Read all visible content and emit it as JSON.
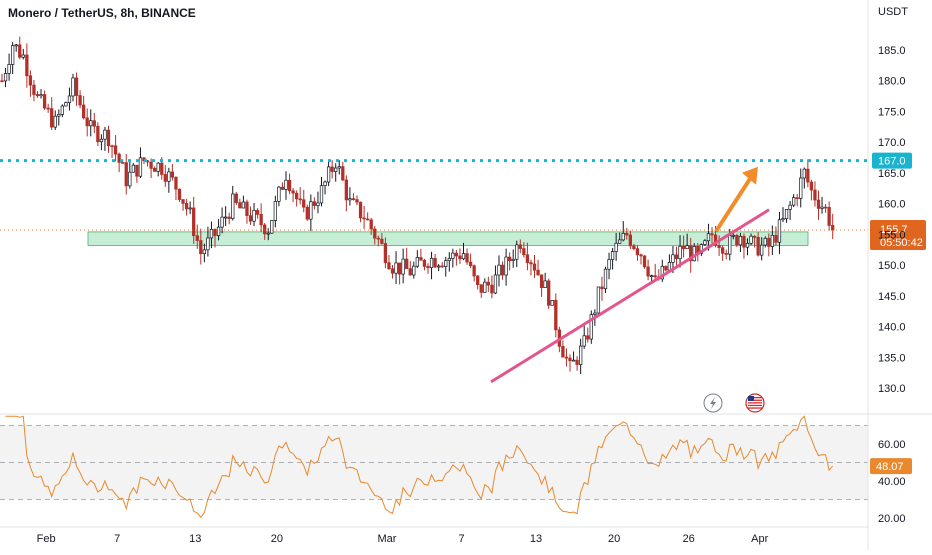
{
  "header": {
    "title": "Monero / TetherUS, 8h, BINANCE",
    "currency": "USDT"
  },
  "colors": {
    "up": "#ffffff",
    "up_border": "#131722",
    "down": "#b2302a",
    "support_zone_fill": "#bdeccf",
    "support_zone_border": "#2f9e57",
    "resistance_line": "#1ab3d0",
    "trendline": "#e3558d",
    "arrow": "#f28c28",
    "price_tag": "#e0661f",
    "rsi_line": "#e8892e",
    "rsi_band": "#f3f3f3",
    "grid": "#e9e9ec"
  },
  "icons": [
    "lightning-icon",
    "us-flag-icon"
  ],
  "chart_data": {
    "type": "candlestick",
    "price_axis": {
      "ticks": [
        "130.0",
        "135.0",
        "140.0",
        "145.0",
        "150.0",
        "155.0",
        "160.0",
        "165.0",
        "170.0",
        "175.0",
        "180.0",
        "185.0"
      ],
      "range": [
        127,
        189
      ]
    },
    "time_axis": {
      "ticks": [
        "Feb",
        "7",
        "13",
        "20",
        "Mar",
        "7",
        "13",
        "20",
        "26",
        "Apr"
      ]
    },
    "resistance_level": {
      "value": 167.0,
      "label": "167.0"
    },
    "last_price": {
      "value": 155.7,
      "label": "155.7",
      "countdown": "05:50:42"
    },
    "support_zone": {
      "low": 153.2,
      "high": 155.4
    },
    "trendline": {
      "from": {
        "date": "Mar 9",
        "price": 131
      },
      "to": {
        "date": "Mar 30",
        "price": 159
      }
    },
    "projection_arrow": {
      "from": {
        "date": "Mar 27",
        "price": 155.5
      },
      "to": {
        "date": "Mar 30",
        "price": 166
      }
    },
    "price_anchors": [
      [
        0,
        180
      ],
      [
        3,
        186
      ],
      [
        6,
        184
      ],
      [
        10,
        177
      ],
      [
        15,
        173
      ],
      [
        20,
        179
      ],
      [
        25,
        172
      ],
      [
        30,
        171
      ],
      [
        35,
        164
      ],
      [
        40,
        167
      ],
      [
        45,
        166
      ],
      [
        50,
        162
      ],
      [
        53,
        158
      ],
      [
        56,
        152
      ],
      [
        60,
        155
      ],
      [
        65,
        160
      ],
      [
        70,
        158
      ],
      [
        75,
        156
      ],
      [
        80,
        165
      ],
      [
        85,
        158
      ],
      [
        90,
        162
      ],
      [
        94,
        167
      ],
      [
        98,
        160
      ],
      [
        102,
        158
      ],
      [
        106,
        154
      ],
      [
        110,
        150
      ],
      [
        115,
        149
      ],
      [
        120,
        151
      ],
      [
        125,
        151
      ],
      [
        130,
        152
      ],
      [
        134,
        146
      ],
      [
        138,
        147
      ],
      [
        142,
        150
      ],
      [
        146,
        154
      ],
      [
        150,
        150
      ],
      [
        154,
        145
      ],
      [
        157,
        138
      ],
      [
        160,
        133
      ],
      [
        164,
        137
      ],
      [
        168,
        145
      ],
      [
        172,
        152
      ],
      [
        176,
        155
      ],
      [
        180,
        152
      ],
      [
        184,
        147
      ],
      [
        188,
        150
      ],
      [
        192,
        153
      ],
      [
        196,
        151
      ],
      [
        200,
        155
      ],
      [
        204,
        153
      ],
      [
        208,
        155
      ],
      [
        212,
        153
      ],
      [
        216,
        153
      ],
      [
        220,
        157
      ],
      [
        224,
        162
      ],
      [
        226,
        165
      ],
      [
        228,
        162
      ],
      [
        232,
        159
      ],
      [
        234,
        156
      ]
    ],
    "rsi": {
      "levels": [
        30,
        50,
        70
      ],
      "ticks": [
        "20.00",
        "40.00",
        "60.00"
      ],
      "current": {
        "value": 48.07,
        "label": "48.07"
      },
      "range": [
        15,
        75
      ]
    }
  }
}
